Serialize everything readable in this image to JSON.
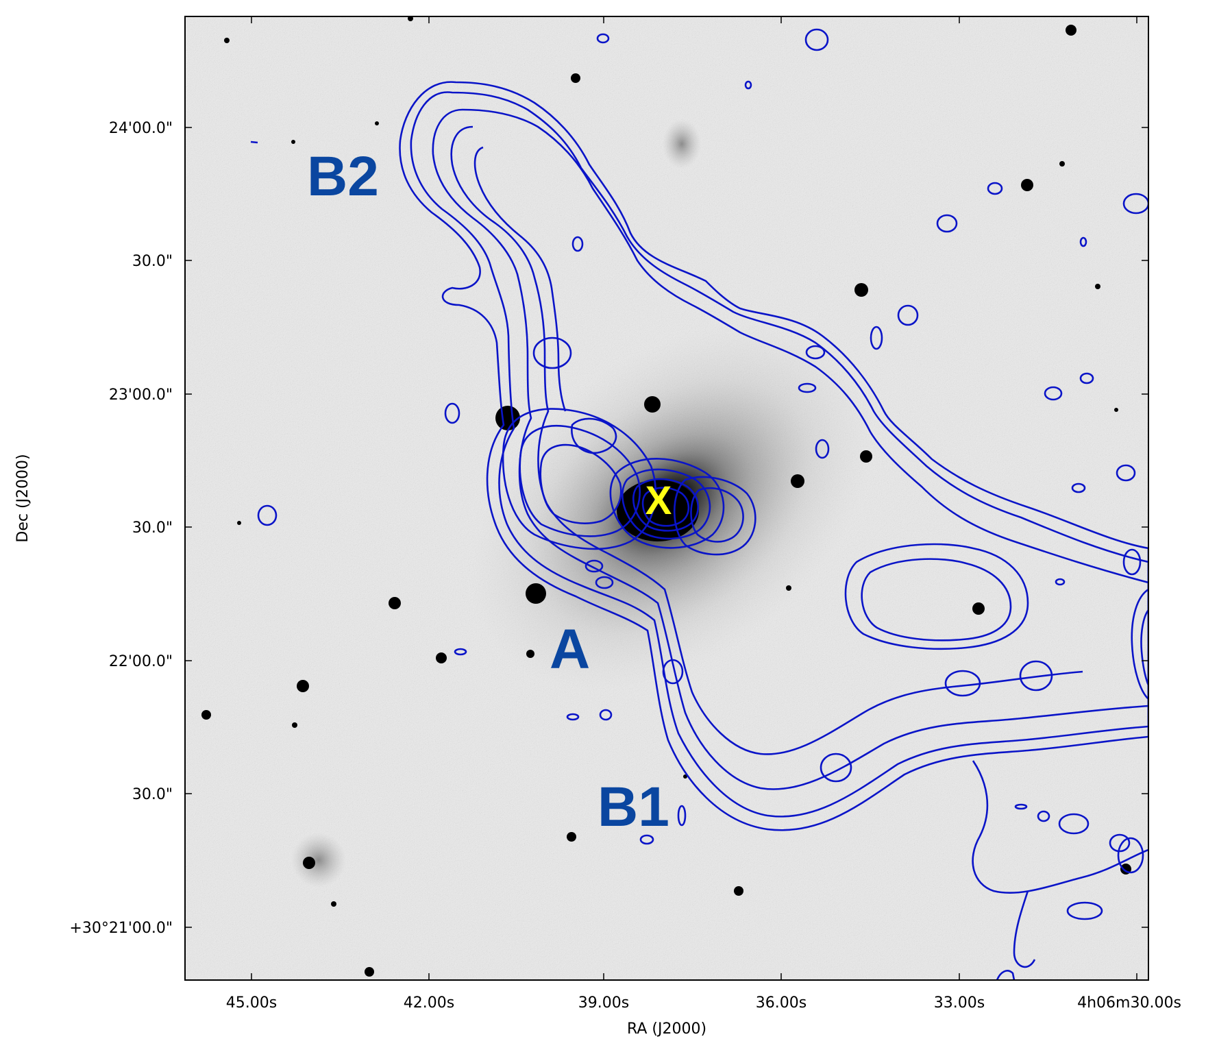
{
  "axes": {
    "xlabel": "RA (J2000)",
    "ylabel": "Dec (J2000)",
    "x_ticks": [
      "45.00s",
      "42.00s",
      "39.00s",
      "36.00s",
      "33.00s",
      "4h06m30.00s"
    ],
    "y_ticks": [
      "24'00.0\"",
      "30.0\"",
      "23'00.0\"",
      "30.0\"",
      "22'00.0\"",
      "30.0\"",
      "+30°21'00.0\""
    ]
  },
  "labels": {
    "b2": "B2",
    "a": "A",
    "b1": "B1",
    "x": "X"
  },
  "colors": {
    "contour": "#0a14c8",
    "region_label": "#0a46a0",
    "marker": "#ffff14",
    "background": "#ececec"
  }
}
